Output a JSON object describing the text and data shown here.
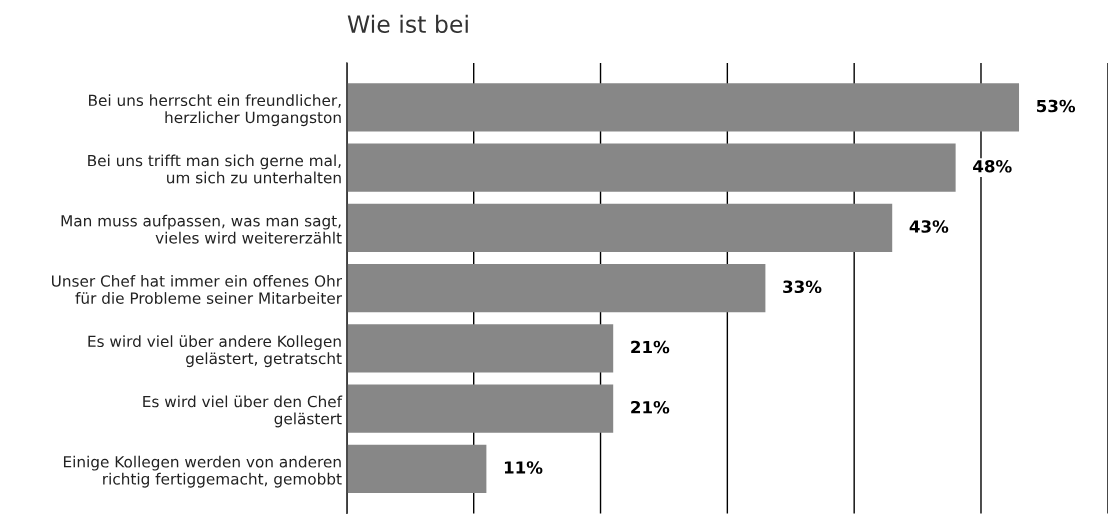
{
  "chart_data": {
    "type": "bar",
    "orientation": "horizontal",
    "title": "Wie ist bei",
    "categories": [
      "Bei uns herrscht ein freundlicher,\nherzlicher Umgangston",
      "Bei uns trifft man sich gerne mal,\num sich zu unterhalten",
      "Man muss aufpassen, was man sagt,\nvieles wird weitererzählt",
      "Unser Chef hat immer ein offenes Ohr\nfür die Probleme seiner Mitarbeiter",
      "Es wird viel über andere Kollegen\ngelästert, getratscht",
      "Es wird viel über den Chef\ngelästert",
      "Einige Kollegen werden von anderen\nrichtig fertiggemacht, gemobbt"
    ],
    "values": [
      53,
      48,
      43,
      33,
      21,
      21,
      11
    ],
    "value_labels": [
      "53%",
      "48%",
      "43%",
      "33%",
      "21%",
      "21%",
      "11%"
    ],
    "color": "#878787",
    "xlim": [
      0,
      60
    ],
    "xticks": [
      {
        "value": 0,
        "label": null
      },
      {
        "value": 10,
        "label": null
      },
      {
        "value": 20,
        "label": null
      },
      {
        "value": 30,
        "label": null
      },
      {
        "value": 40,
        "label": null
      },
      {
        "value": 50,
        "label": null
      },
      {
        "value": 60,
        "label": null
      }
    ],
    "grid": "x",
    "tick_labels": "y"
  }
}
